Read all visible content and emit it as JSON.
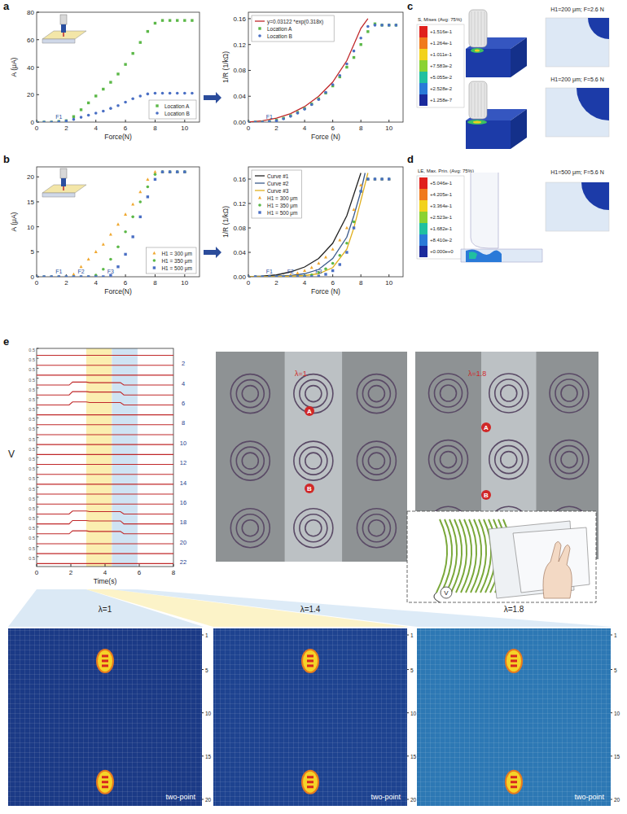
{
  "chart_data": [
    {
      "type": "scatter",
      "xlabel": "Force(N)",
      "ylabel": "A (μA)",
      "xlim": [
        0,
        11
      ],
      "ylim": [
        0,
        80
      ],
      "xticks": [
        0,
        2,
        4,
        6,
        8,
        10
      ],
      "yticks": [
        0,
        20,
        40,
        60,
        80
      ],
      "legend": "lower right",
      "x": [
        0,
        0.5,
        1,
        1.5,
        2,
        2.5,
        3,
        3.5,
        4,
        4.5,
        5,
        5.5,
        6,
        6.5,
        7,
        7.5,
        8,
        8.5,
        9,
        9.5,
        10,
        10.5
      ],
      "annotations": [
        {
          "text": "F1",
          "x": 1.5
        }
      ],
      "series": [
        {
          "name": "Location A",
          "color": "#5cb848",
          "marker": "square",
          "values": [
            0,
            0,
            0,
            0.5,
            1,
            4,
            9,
            14,
            19,
            24,
            29,
            35,
            42,
            50,
            58,
            66,
            72,
            74,
            74,
            74,
            74,
            74
          ]
        },
        {
          "name": "Location B",
          "color": "#4a6fc4",
          "marker": "circle",
          "values": [
            0,
            0,
            0,
            0.3,
            0.8,
            2,
            3.5,
            5,
            6.5,
            8,
            10,
            12,
            14.5,
            17,
            19,
            20.5,
            21,
            21,
            21,
            21,
            21,
            21
          ]
        }
      ]
    },
    {
      "type": "scatter",
      "xlabel": "Force (N)",
      "ylabel": "1/R (1/kΩ)",
      "xlim": [
        0,
        11
      ],
      "ylim": [
        0,
        0.17
      ],
      "xticks": [
        0,
        2,
        4,
        6,
        8,
        10
      ],
      "yticks": [
        {
          "value": 0,
          "label": "0.00"
        },
        0.04,
        0.08,
        0.12,
        0.16
      ],
      "legend": "upper left",
      "x": [
        0,
        0.5,
        1,
        1.5,
        2,
        2.5,
        3,
        3.5,
        4,
        4.5,
        5,
        5.5,
        6,
        6.5,
        7,
        7.5,
        8,
        8.5,
        9,
        9.5,
        10,
        10.5
      ],
      "annotations": [
        {
          "text": "F1",
          "x": 1.5
        }
      ],
      "series": [
        {
          "name": "y=0.03122 *exp(0.318x)",
          "type": "line",
          "color": "#c0282a",
          "line_style": "solid",
          "x": [
            0,
            1,
            2,
            3,
            4,
            5,
            6,
            7,
            7.5,
            8,
            8.5
          ],
          "values": [
            0,
            0.002,
            0.006,
            0.013,
            0.024,
            0.04,
            0.062,
            0.095,
            0.12,
            0.145,
            0.16
          ]
        },
        {
          "name": "Location A",
          "color": "#5cb848",
          "marker": "square",
          "values": [
            0,
            0,
            0,
            0.001,
            0.003,
            0.006,
            0.01,
            0.015,
            0.021,
            0.028,
            0.036,
            0.045,
            0.056,
            0.07,
            0.085,
            0.1,
            0.12,
            0.14,
            0.152,
            0.15,
            0.15,
            0.15
          ]
        },
        {
          "name": "Location B",
          "color": "#4a6fc4",
          "marker": "circle",
          "values": [
            0,
            0,
            0,
            0.001,
            0.002,
            0.005,
            0.009,
            0.014,
            0.02,
            0.027,
            0.035,
            0.046,
            0.058,
            0.072,
            0.09,
            0.11,
            0.13,
            0.148,
            0.15,
            0.15,
            0.15,
            0.15
          ]
        }
      ]
    },
    {
      "type": "scatter",
      "xlabel": "Force(N)",
      "ylabel": "A (μA)",
      "xlim": [
        0,
        11
      ],
      "ylim": [
        0,
        22
      ],
      "xticks": [
        0,
        2,
        4,
        6,
        8,
        10
      ],
      "yticks": [
        0,
        5,
        10,
        15,
        20
      ],
      "legend": "lower right",
      "x": [
        0,
        0.5,
        1,
        1.5,
        2,
        2.5,
        3,
        3.5,
        4,
        4.5,
        5,
        5.5,
        6,
        6.5,
        7,
        7.5,
        8,
        8.5,
        9,
        9.5,
        10
      ],
      "annotations": [
        {
          "text": "F1",
          "x": 1.5
        },
        {
          "text": "F2",
          "x": 3
        },
        {
          "text": "F3",
          "x": 5
        }
      ],
      "series": [
        {
          "name": "H1 = 300 μm",
          "color": "#f0a830",
          "marker": "triangle",
          "values": [
            0,
            0,
            0,
            0,
            0,
            0.5,
            2,
            3.5,
            5,
            6.5,
            8.5,
            10.5,
            12.5,
            14.5,
            17,
            19.5,
            21,
            21,
            21,
            21,
            21
          ]
        },
        {
          "name": "H1 = 350 μm",
          "color": "#5cb848",
          "marker": "circle",
          "values": [
            0,
            0,
            0,
            0,
            0,
            0,
            0,
            0,
            0.3,
            1.5,
            3.5,
            6,
            9,
            12,
            15,
            18,
            20.5,
            21,
            21,
            21,
            21
          ]
        },
        {
          "name": "H1 = 500 μm",
          "color": "#4a6fc4",
          "marker": "square",
          "values": [
            0,
            0,
            0,
            0,
            0,
            0,
            0,
            0,
            0,
            0,
            0.3,
            2,
            4.5,
            8,
            12,
            16,
            19.5,
            21,
            21,
            21,
            21
          ]
        }
      ]
    },
    {
      "type": "scatter",
      "xlabel": "Force (N)",
      "ylabel": "1/R (1/kΩ)",
      "xlim": [
        0,
        11
      ],
      "ylim": [
        0,
        0.18
      ],
      "xticks": [
        0,
        2,
        4,
        6,
        8,
        10
      ],
      "yticks": [
        {
          "value": 0,
          "label": "0.00"
        },
        0.04,
        0.08,
        0.12,
        0.16
      ],
      "legend": "upper left",
      "x": [
        0,
        0.5,
        1,
        1.5,
        2,
        2.5,
        3,
        3.5,
        4,
        4.5,
        5,
        5.5,
        6,
        6.5,
        7,
        7.5,
        8,
        8.5,
        9,
        9.5,
        10
      ],
      "annotations": [
        {
          "text": "F1",
          "x": 1.5
        },
        {
          "text": "F2",
          "x": 3
        },
        {
          "text": "F3",
          "x": 5
        }
      ],
      "series": [
        {
          "name": "Curve #1",
          "type": "line",
          "color": "#222222",
          "line_style": "solid",
          "x": [
            0,
            1,
            2,
            3,
            4,
            5,
            6,
            7,
            7.5,
            8
          ],
          "values": [
            0,
            0.001,
            0.003,
            0.008,
            0.016,
            0.03,
            0.055,
            0.1,
            0.135,
            0.17
          ]
        },
        {
          "name": "Curve #2",
          "type": "line",
          "color": "#3a5a8c",
          "line_style": "solid",
          "x": [
            0,
            1,
            2,
            3,
            4,
            5,
            6,
            7,
            7.5,
            8,
            8.3
          ],
          "values": [
            0,
            0,
            0.001,
            0.002,
            0.005,
            0.012,
            0.03,
            0.065,
            0.1,
            0.14,
            0.17
          ]
        },
        {
          "name": "Curve #3",
          "type": "line",
          "color": "#e0b020",
          "line_style": "solid",
          "x": [
            0,
            2,
            3,
            4,
            5,
            6,
            7,
            7.5,
            8,
            8.5
          ],
          "values": [
            0,
            0,
            0.001,
            0.002,
            0.005,
            0.015,
            0.045,
            0.08,
            0.125,
            0.17
          ]
        },
        {
          "name": "H1 = 300 μm",
          "color": "#f0a830",
          "marker": "triangle",
          "values": [
            0,
            0,
            0,
            0,
            0,
            0.001,
            0.003,
            0.006,
            0.01,
            0.015,
            0.022,
            0.032,
            0.045,
            0.06,
            0.08,
            0.11,
            0.15,
            0.16,
            0.16,
            0.16,
            0.16
          ]
        },
        {
          "name": "H1 = 350 μm",
          "color": "#5cb848",
          "marker": "circle",
          "values": [
            0,
            0,
            0,
            0,
            0,
            0,
            0,
            0,
            0.001,
            0.003,
            0.007,
            0.013,
            0.022,
            0.035,
            0.055,
            0.09,
            0.14,
            0.16,
            0.16,
            0.16,
            0.16
          ]
        },
        {
          "name": "H1 = 500 μm",
          "color": "#4a6fc4",
          "marker": "square",
          "values": [
            0,
            0,
            0,
            0,
            0,
            0,
            0,
            0,
            0,
            0,
            0.001,
            0.004,
            0.01,
            0.02,
            0.04,
            0.08,
            0.14,
            0.16,
            0.16,
            0.16,
            0.16
          ]
        }
      ]
    },
    {
      "type": "line",
      "xlabel": "Time(s)",
      "ylabel": "V",
      "xlim": [
        0,
        8
      ],
      "ylim": [
        0,
        0.5
      ],
      "xticks": [
        0,
        2,
        4,
        6,
        8
      ],
      "yticks": [
        0.5
      ],
      "color": "#c0282a",
      "x": [
        0,
        1.9,
        2.1,
        2.9,
        3.1,
        4.9,
        5.1,
        8
      ],
      "bands": [
        {
          "from": 2.9,
          "to": 4.4,
          "color": "#fbeeb0"
        },
        {
          "from": 4.4,
          "to": 5.9,
          "color": "#cfe3f3"
        }
      ],
      "channels": [
        null,
        "2",
        null,
        "4",
        null,
        "6",
        null,
        "8",
        null,
        "10",
        null,
        "12",
        null,
        "14",
        null,
        "16",
        null,
        "18",
        null,
        "20",
        null,
        "22"
      ],
      "series": [
        {
          "values": [
            0.15,
            0.15,
            0.15,
            0.15,
            0.15,
            0.15,
            0.15,
            0.15
          ]
        },
        {
          "values": [
            0.15,
            0.15,
            0.15,
            0.15,
            0.15,
            0.15,
            0.15,
            0.15
          ]
        },
        {
          "values": [
            0.15,
            0.15,
            0.15,
            0.15,
            0.15,
            0.15,
            0.15,
            0.15
          ]
        },
        {
          "values": [
            0.15,
            0.15,
            0.3,
            0.3,
            0.27,
            0.27,
            0.15,
            0.15
          ]
        },
        {
          "values": [
            0.15,
            0.15,
            0.32,
            0.32,
            0.3,
            0.3,
            0.15,
            0.15
          ]
        },
        {
          "values": [
            0.15,
            0.15,
            0.3,
            0.3,
            0.27,
            0.27,
            0.15,
            0.15
          ]
        },
        {
          "values": [
            0.15,
            0.15,
            0.15,
            0.15,
            0.15,
            0.15,
            0.15,
            0.15
          ]
        },
        {
          "values": [
            0.15,
            0.15,
            0.15,
            0.15,
            0.15,
            0.15,
            0.15,
            0.15
          ]
        },
        {
          "values": [
            0.15,
            0.15,
            0.15,
            0.15,
            0.15,
            0.15,
            0.15,
            0.15
          ]
        },
        {
          "values": [
            0.15,
            0.15,
            0.15,
            0.15,
            0.15,
            0.15,
            0.15,
            0.15
          ]
        },
        {
          "values": [
            0.15,
            0.15,
            0.15,
            0.15,
            0.15,
            0.15,
            0.15,
            0.15
          ]
        },
        {
          "values": [
            0.15,
            0.15,
            0.15,
            0.15,
            0.15,
            0.15,
            0.15,
            0.15
          ]
        },
        {
          "values": [
            0.15,
            0.15,
            0.15,
            0.15,
            0.15,
            0.15,
            0.15,
            0.15
          ]
        },
        {
          "values": [
            0.15,
            0.15,
            0.15,
            0.15,
            0.15,
            0.15,
            0.15,
            0.15
          ]
        },
        {
          "values": [
            0.15,
            0.15,
            0.15,
            0.15,
            0.15,
            0.15,
            0.15,
            0.15
          ]
        },
        {
          "values": [
            0.15,
            0.15,
            0.15,
            0.15,
            0.15,
            0.15,
            0.15,
            0.15
          ]
        },
        {
          "values": [
            0.15,
            0.15,
            0.3,
            0.3,
            0.27,
            0.27,
            0.15,
            0.15
          ]
        },
        {
          "values": [
            0.15,
            0.15,
            0.32,
            0.32,
            0.3,
            0.3,
            0.15,
            0.15
          ]
        },
        {
          "values": [
            0.15,
            0.15,
            0.3,
            0.3,
            0.27,
            0.27,
            0.15,
            0.15
          ]
        },
        {
          "values": [
            0.15,
            0.15,
            0.15,
            0.15,
            0.15,
            0.15,
            0.15,
            0.15
          ]
        },
        {
          "values": [
            0.15,
            0.15,
            0.15,
            0.15,
            0.15,
            0.15,
            0.15,
            0.15
          ]
        },
        {
          "values": [
            0.15,
            0.15,
            0.15,
            0.15,
            0.15,
            0.15,
            0.15,
            0.15
          ]
        }
      ]
    }
  ],
  "figure": {
    "panel_labels": [
      "a",
      "b",
      "c",
      "d",
      "e"
    ],
    "fea_c": {
      "legend_title": "S, Mises (Avg: 75%)",
      "legend_values": [
        "+1.516e-1",
        "+1.264e-1",
        "+1.011e-1",
        "+7.583e-2",
        "+5.055e-2",
        "+2.528e-2",
        "+1.258e-7"
      ],
      "titles": [
        "H1=200 μm; F=2.6 N",
        "H1=200 μm; F=5.6 N"
      ]
    },
    "fea_d": {
      "legend_title": "LE, Max. Prin. (Avg: 75%)",
      "legend_values": [
        "+5.046e-1",
        "+4.205e-1",
        "+3.364e-1",
        "+2.523e-1",
        "+1.682e-1",
        "+8.410e-2",
        "+0.000e+0"
      ],
      "titles": [
        "H1=500 μm; F=5.6 N"
      ]
    },
    "photos": [
      {
        "label": "λ=1",
        "markers": [
          "A",
          "B"
        ]
      },
      {
        "label": "λ=1.8",
        "markers": [
          "A",
          "B"
        ]
      }
    ],
    "inset_label": "V",
    "heatmaps": [
      {
        "title": "λ=1",
        "text": "two-point",
        "color": "#1b3a86",
        "ylim": [
          1,
          20
        ],
        "yticks": [
          1,
          5,
          10,
          15,
          20
        ],
        "hotspots": [
          {
            "row": 4
          },
          {
            "row": 18
          }
        ]
      },
      {
        "title": "λ=1.4",
        "text": "two-point",
        "color": "#1e4390",
        "ylim": [
          1,
          20
        ],
        "yticks": [
          1,
          5,
          10,
          15,
          20
        ],
        "hotspots": [
          {
            "row": 4
          },
          {
            "row": 18
          }
        ]
      },
      {
        "title": "λ=1.8",
        "text": "two-point",
        "color": "#2d78b4",
        "ylim": [
          1,
          20
        ],
        "yticks": [
          1,
          5,
          10,
          15,
          20
        ],
        "hotspots": [
          {
            "row": 4
          },
          {
            "row": 18
          }
        ]
      }
    ]
  }
}
